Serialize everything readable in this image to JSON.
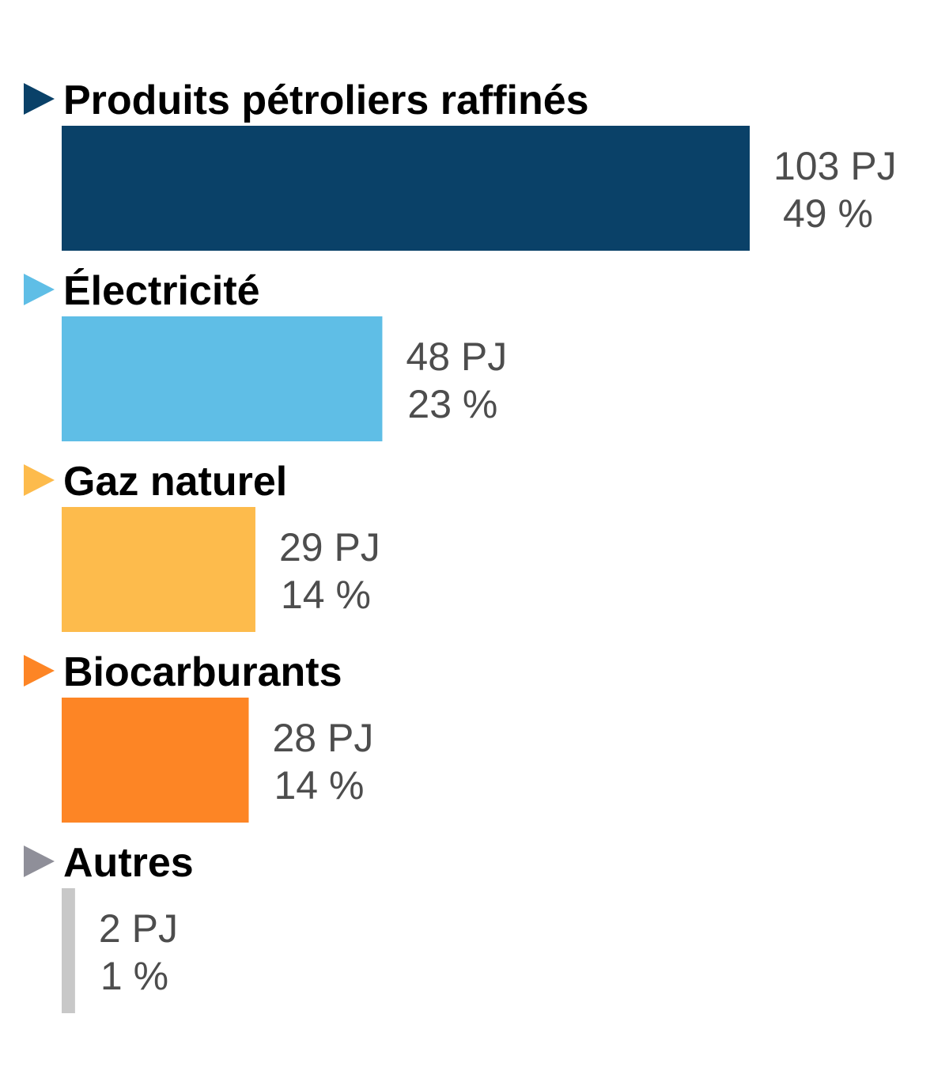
{
  "chart_data": {
    "type": "bar",
    "orientation": "horizontal",
    "categories": [
      "Produits pétroliers raffinés",
      "Électricité",
      "Gaz naturel",
      "Biocarburants",
      "Autres"
    ],
    "values": [
      103,
      48,
      29,
      28,
      2
    ],
    "value_labels": [
      "103 PJ",
      "48 PJ",
      "29 PJ",
      "28 PJ",
      "2 PJ"
    ],
    "percent_labels": [
      "49 %",
      "23 %",
      "14 %",
      "14 %",
      "1 %"
    ],
    "unit": "PJ",
    "colors": [
      "#0a4168",
      "#5fbee6",
      "#fdbb4c",
      "#fd8525",
      "#8f8f99"
    ],
    "bar_colors": [
      "#0a4168",
      "#5fbee6",
      "#fdbb4c",
      "#fd8525",
      "#c8c8c8"
    ],
    "xlim": [
      0,
      103
    ],
    "grid": false,
    "legend": "none"
  }
}
